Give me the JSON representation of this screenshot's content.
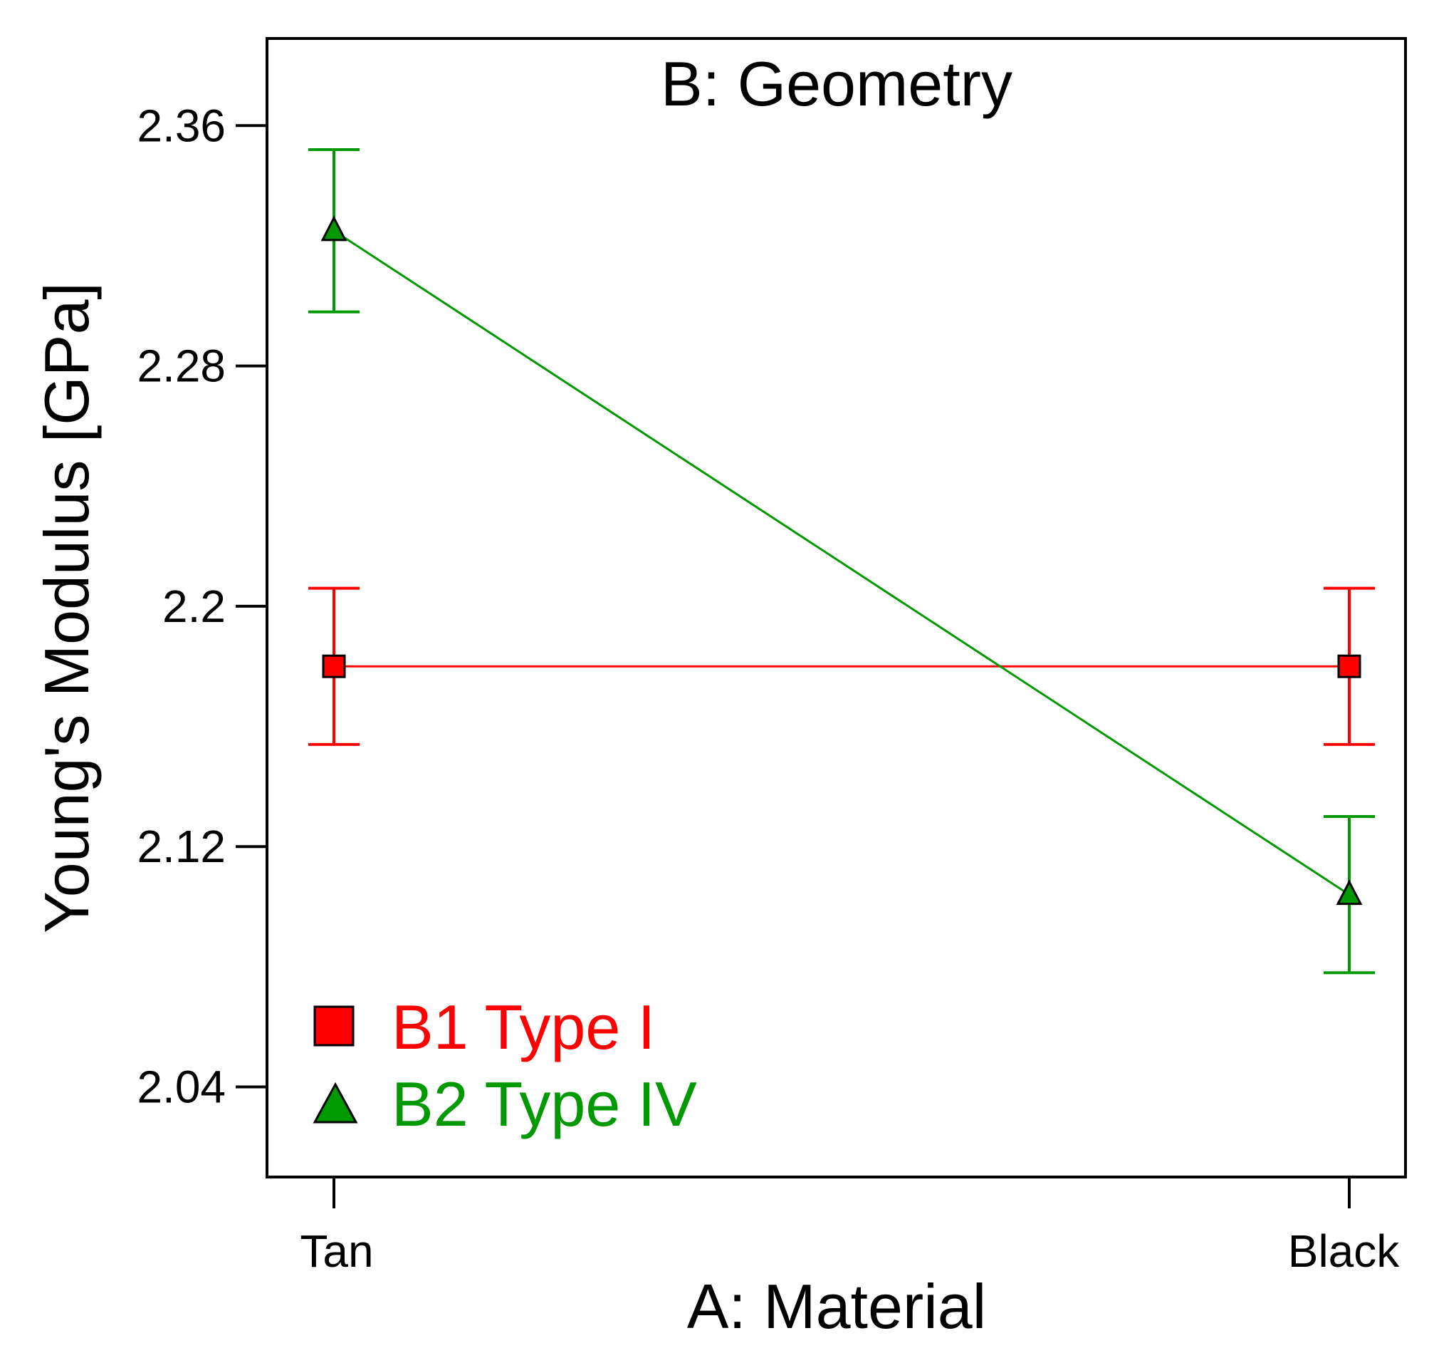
{
  "chart_data": {
    "type": "line",
    "title": "B: Geometry",
    "xlabel": "A: Material",
    "ylabel": "Young's Modulus [GPa]",
    "categories": [
      "Tan",
      "Black"
    ],
    "ylim": [
      2.01,
      2.389
    ],
    "yticks": [
      2.04,
      2.12,
      2.2,
      2.28,
      2.36
    ],
    "ytick_labels": [
      "2.04",
      "2.12",
      "2.2",
      "2.28",
      "2.36"
    ],
    "grid": false,
    "legend_position": "bottom-left",
    "series": [
      {
        "name": "B1 Type I",
        "marker": "square",
        "color": "#ff0000",
        "values": [
          2.18,
          2.18
        ],
        "error_low": [
          2.154,
          2.154
        ],
        "error_high": [
          2.206,
          2.206
        ]
      },
      {
        "name": "B2 Type IV",
        "marker": "triangle",
        "color": "#009900",
        "values": [
          2.325,
          2.104
        ],
        "error_low": [
          2.298,
          2.078
        ],
        "error_high": [
          2.352,
          2.13
        ]
      }
    ]
  }
}
